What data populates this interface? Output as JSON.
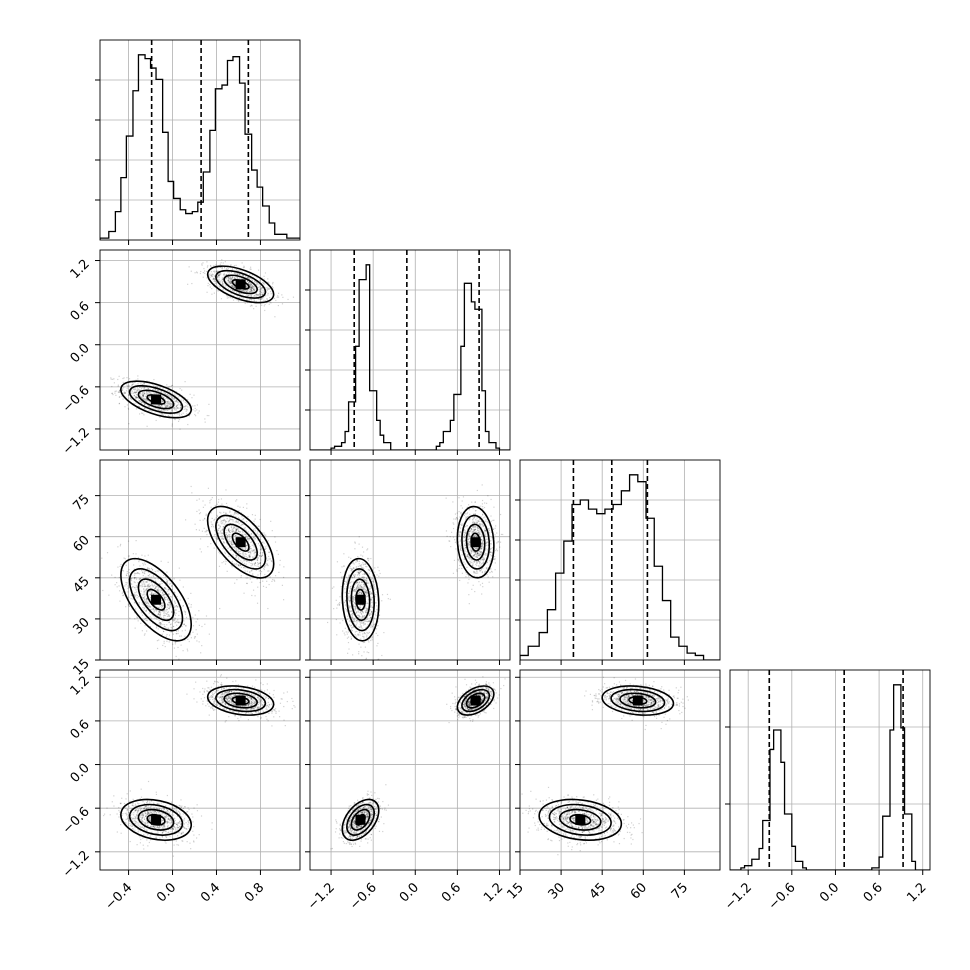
{
  "figure": {
    "title": ""
  },
  "chart_data": {
    "type": "corner",
    "parameters": [
      {
        "id": "p0",
        "range": [
          -0.66,
          1.16
        ],
        "ticks": [
          -0.4,
          0.0,
          0.4,
          0.8
        ],
        "tick_labels": [
          "−0.4",
          "0.0",
          "0.4",
          "0.8"
        ]
      },
      {
        "id": "p1",
        "range": [
          -1.5,
          1.35
        ],
        "ticks": [
          -1.2,
          -0.6,
          0.0,
          0.6,
          1.2
        ],
        "tick_labels": [
          "−1.2",
          "−0.6",
          "0.0",
          "0.6",
          "1.2"
        ]
      },
      {
        "id": "p2",
        "range": [
          15,
          88
        ],
        "ticks": [
          15,
          30,
          45,
          60,
          75
        ],
        "tick_labels": [
          "15",
          "30",
          "45",
          "60",
          "75"
        ]
      },
      {
        "id": "p3",
        "range": [
          -1.45,
          1.3
        ],
        "ticks": [
          -1.2,
          -0.6,
          0.0,
          0.6,
          1.2
        ],
        "tick_labels": [
          "−1.2",
          "−0.6",
          "0.0",
          "0.6",
          "1.2"
        ]
      }
    ],
    "grid": true,
    "quantiles": [
      [
        -0.19,
        0.26,
        0.69
      ],
      [
        -0.87,
        -0.12,
        0.91
      ],
      [
        34.5,
        48.5,
        61.5
      ],
      [
        -0.91,
        0.12,
        0.93
      ]
    ],
    "histograms": [
      {
        "edges": [
          -0.66,
          -0.58,
          -0.52,
          -0.47,
          -0.42,
          -0.36,
          -0.31,
          -0.25,
          -0.2,
          -0.15,
          -0.09,
          -0.04,
          0.01,
          0.07,
          0.12,
          0.18,
          0.23,
          0.28,
          0.34,
          0.39,
          0.45,
          0.5,
          0.55,
          0.61,
          0.66,
          0.72,
          0.77,
          0.82,
          0.88,
          0.93,
          1.04,
          1.16
        ],
        "counts": [
          0.2,
          0.9,
          3.0,
          6.6,
          11.0,
          15.8,
          19.6,
          19.2,
          18.2,
          17.0,
          11.4,
          6.2,
          4.4,
          3.2,
          2.8,
          3.0,
          4.0,
          7.2,
          11.6,
          16.0,
          16.4,
          19.0,
          19.4,
          16.6,
          11.2,
          7.4,
          5.6,
          3.6,
          1.8,
          0.6,
          0.2
        ]
      },
      {
        "edges": [
          -1.5,
          -1.2,
          -1.15,
          -1.05,
          -1.0,
          -0.95,
          -0.85,
          -0.8,
          -0.7,
          -0.65,
          -0.55,
          -0.5,
          -0.45,
          -0.35,
          -0.3,
          -0.2,
          -0.15,
          -0.1,
          0.0,
          0.05,
          0.15,
          0.2,
          0.3,
          0.35,
          0.4,
          0.5,
          0.55,
          0.65,
          0.7,
          0.8,
          0.85,
          0.95,
          1.0,
          1.05,
          1.15,
          1.2,
          1.35
        ],
        "counts": [
          0.0,
          0.1,
          0.2,
          0.4,
          1.0,
          2.6,
          5.6,
          9.2,
          10.0,
          3.2,
          1.6,
          0.8,
          0.4,
          0.0,
          0.0,
          0.0,
          0.0,
          0.0,
          0.0,
          0.0,
          0.0,
          0.0,
          0.2,
          0.4,
          1.0,
          1.6,
          3.0,
          5.6,
          9.0,
          8.0,
          7.6,
          3.2,
          1.0,
          0.4,
          0.1,
          0.0
        ]
      },
      {
        "edges": [
          15,
          18,
          22,
          25,
          28,
          31,
          34,
          37,
          40,
          43,
          46,
          49,
          52,
          55,
          58,
          61,
          64,
          67,
          70,
          73,
          76,
          79,
          82,
          88
        ],
        "counts": [
          0.2,
          0.6,
          1.2,
          2.2,
          3.8,
          5.2,
          6.8,
          7.0,
          6.6,
          6.4,
          6.6,
          6.8,
          7.4,
          8.1,
          7.8,
          6.2,
          4.1,
          2.6,
          1.0,
          0.6,
          0.3,
          0.2,
          0.0
        ]
      },
      {
        "edges": [
          -1.45,
          -1.3,
          -1.25,
          -1.15,
          -1.05,
          -1.0,
          -0.9,
          -0.85,
          -0.75,
          -0.7,
          -0.6,
          -0.55,
          -0.45,
          -0.4,
          -0.3,
          -0.25,
          -0.15,
          -0.1,
          0.0,
          0.05,
          0.15,
          0.2,
          0.3,
          0.35,
          0.45,
          0.5,
          0.6,
          0.65,
          0.75,
          0.8,
          0.9,
          0.95,
          1.05,
          1.1,
          1.3
        ],
        "counts": [
          0.0,
          0.1,
          0.2,
          0.5,
          1.0,
          2.3,
          5.6,
          6.5,
          5.0,
          2.6,
          1.1,
          0.4,
          0.1,
          0.0,
          0.0,
          0.0,
          0.0,
          0.0,
          0.0,
          0.0,
          0.0,
          0.0,
          0.0,
          0.0,
          0.0,
          0.1,
          0.6,
          2.5,
          6.5,
          8.6,
          6.6,
          2.6,
          0.4,
          0.0
        ]
      }
    ],
    "modes": [
      {
        "mean": [
          -0.15,
          -0.78,
          37,
          -0.76
        ],
        "sd": [
          0.16,
          0.13,
          7.5,
          0.14
        ],
        "weight": 0.5
      },
      {
        "mean": [
          0.62,
          0.86,
          58,
          0.88
        ],
        "sd": [
          0.15,
          0.13,
          6.5,
          0.1
        ],
        "weight": 0.5
      }
    ],
    "pair_correlations": {
      "1-0": -0.55,
      "2-0": -0.6,
      "2-1": -0.1,
      "3-0": -0.25,
      "3-1": 0.45,
      "3-2": -0.2
    }
  }
}
